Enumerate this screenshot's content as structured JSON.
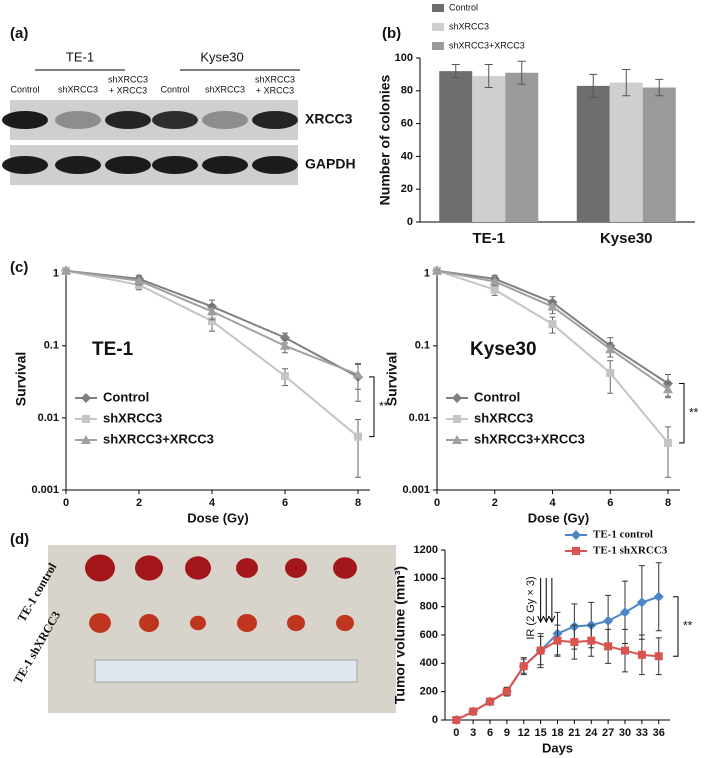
{
  "panels": [
    "(a)",
    "(b)",
    "(c)",
    "(d)"
  ],
  "blot": {
    "groups": [
      "TE-1",
      "Kyse30"
    ],
    "lanes": [
      [
        "Control"
      ],
      [
        "shXRCC3"
      ],
      [
        "shXRCC3",
        "+ XRCC3"
      ],
      [
        "Control"
      ],
      [
        "shXRCC3"
      ],
      [
        "shXRCC3",
        "+ XRCC3"
      ]
    ],
    "proteins": [
      "XRCC3",
      "GAPDH"
    ]
  },
  "photo": {
    "rows": [
      "TE-1 control",
      "TE-1 shXRCC3"
    ]
  },
  "chart_data": [
    {
      "type": "bar",
      "categories": [
        "TE-1",
        "Kyse30"
      ],
      "ylabel": "Number of colonies",
      "ylim": [
        0,
        100
      ],
      "yticks": [
        0,
        20,
        40,
        60,
        80,
        100
      ],
      "legend": "top",
      "series": [
        {
          "name": "Control",
          "color": "#6e6e6e",
          "values": [
            92,
            83
          ],
          "errors": [
            4,
            7
          ]
        },
        {
          "name": "shXRCC3",
          "color": "#cfcfcf",
          "values": [
            89,
            85
          ],
          "errors": [
            7,
            8
          ]
        },
        {
          "name": "shXRCC3+XRCC3",
          "color": "#9a9a9a",
          "values": [
            91,
            82
          ],
          "errors": [
            7,
            5
          ]
        }
      ]
    },
    {
      "type": "line",
      "label": "TE-1",
      "significance": "**",
      "x": [
        0,
        2,
        4,
        6,
        8
      ],
      "xlabel": "Dose (Gy)",
      "ylabel": "Survival",
      "xlim": [
        0,
        8
      ],
      "xticks": [
        0,
        2,
        4,
        6,
        8
      ],
      "ylim": [
        0.001,
        1.2
      ],
      "yticks": [
        0.001,
        0.01,
        0.1,
        1
      ],
      "log_y": true,
      "legend": "lower left",
      "series": [
        {
          "name": "Control",
          "color": "#808080",
          "marker": "diamond",
          "values": [
            1.1,
            0.85,
            0.35,
            0.13,
            0.037
          ],
          "errors": [
            0.05,
            0.1,
            0.08,
            0.02,
            0.02
          ]
        },
        {
          "name": "shXRCC3",
          "color": "#c4c4c4",
          "marker": "square",
          "values": [
            1.1,
            0.7,
            0.22,
            0.038,
            0.0055
          ],
          "errors": [
            0.05,
            0.1,
            0.06,
            0.01,
            0.004
          ]
        },
        {
          "name": "shXRCC3+XRCC3",
          "color": "#a0a0a0",
          "marker": "triangle",
          "values": [
            1.1,
            0.8,
            0.3,
            0.1,
            0.04
          ],
          "errors": [
            0.05,
            0.1,
            0.07,
            0.02,
            0.015
          ]
        }
      ]
    },
    {
      "type": "line",
      "label": "Kyse30",
      "significance": "**",
      "x": [
        0,
        2,
        4,
        6,
        8
      ],
      "xlabel": "Dose (Gy)",
      "ylabel": "Survival",
      "xlim": [
        0,
        8
      ],
      "xticks": [
        0,
        2,
        4,
        6,
        8
      ],
      "ylim": [
        0.001,
        1.2
      ],
      "yticks": [
        0.001,
        0.01,
        0.1,
        1
      ],
      "log_y": true,
      "legend": "lower left",
      "series": [
        {
          "name": "Control",
          "color": "#808080",
          "marker": "diamond",
          "values": [
            1.1,
            0.85,
            0.4,
            0.1,
            0.03
          ],
          "errors": [
            0.05,
            0.1,
            0.08,
            0.03,
            0.01
          ]
        },
        {
          "name": "shXRCC3",
          "color": "#c4c4c4",
          "marker": "square",
          "values": [
            1.1,
            0.6,
            0.2,
            0.042,
            0.0045
          ],
          "errors": [
            0.05,
            0.1,
            0.05,
            0.02,
            0.003
          ]
        },
        {
          "name": "shXRCC3+XRCC3",
          "color": "#a0a0a0",
          "marker": "triangle",
          "values": [
            1.1,
            0.78,
            0.35,
            0.09,
            0.025
          ],
          "errors": [
            0.05,
            0.1,
            0.07,
            0.02,
            0.006
          ]
        }
      ]
    },
    {
      "type": "line",
      "x": [
        0,
        3,
        6,
        9,
        12,
        15,
        18,
        21,
        24,
        27,
        30,
        33,
        36
      ],
      "xlabel": "Days",
      "ylabel": "Tumor volume (mm³)",
      "xlim": [
        -2,
        38
      ],
      "xticks": [
        0,
        3,
        6,
        9,
        12,
        15,
        18,
        21,
        24,
        27,
        30,
        33,
        36
      ],
      "ylim": [
        0,
        1200
      ],
      "yticks": [
        0,
        200,
        400,
        600,
        800,
        1000,
        1200
      ],
      "annotation": "IR (2 Gy × 3)",
      "significance": "**",
      "legend": "top",
      "series": [
        {
          "name": "TE-1 control",
          "color": "#4a86c8",
          "marker": "diamond",
          "values": [
            0,
            60,
            130,
            200,
            380,
            490,
            610,
            660,
            670,
            700,
            760,
            830,
            870
          ],
          "errors": [
            0,
            10,
            20,
            30,
            60,
            120,
            150,
            160,
            160,
            180,
            220,
            260,
            240
          ]
        },
        {
          "name": "TE-1 shXRCC3",
          "color": "#d9534f",
          "marker": "square",
          "values": [
            0,
            60,
            130,
            200,
            380,
            490,
            560,
            550,
            560,
            520,
            490,
            460,
            450
          ],
          "errors": [
            0,
            10,
            20,
            30,
            50,
            100,
            110,
            120,
            110,
            120,
            150,
            140,
            130
          ]
        }
      ]
    }
  ]
}
